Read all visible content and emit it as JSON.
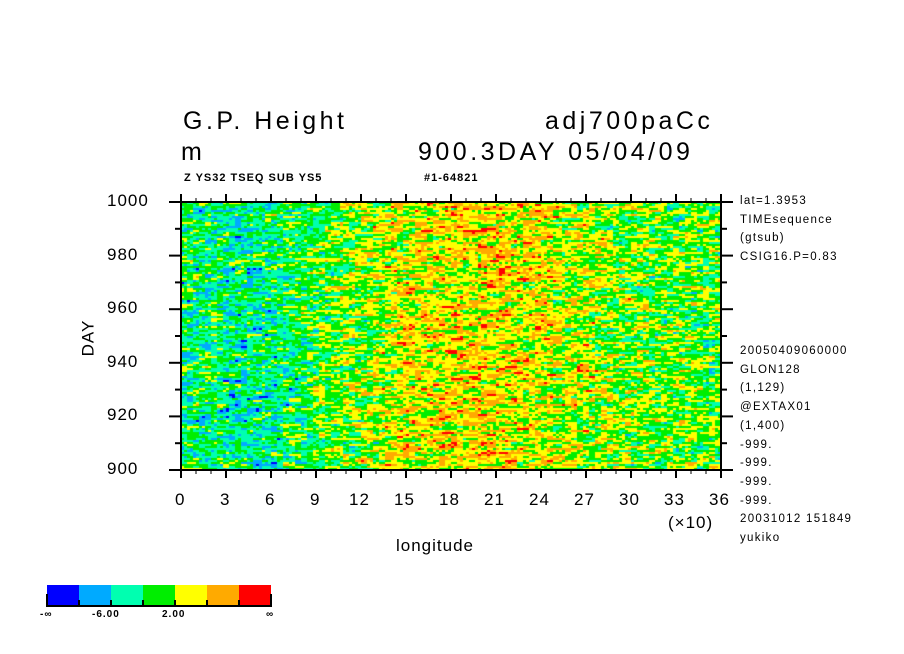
{
  "header": {
    "title": "G.P. Height",
    "dataset": "adj700paCc",
    "unit": "m",
    "time_label": "900.3DAY 05/04/09",
    "subtitle_left": "Z YS32 TSEQ SUB YS5",
    "subtitle_right": "#1-64821"
  },
  "info_lines": [
    "lat=1.3953",
    "TIMEsequence",
    "(gtsub)",
    "CSIG16.P=0.83"
  ],
  "info_lines2": [
    "20050409060000",
    "GLON128",
    "(1,129)",
    "@EXTAX01",
    "(1,400)",
    "-999.",
    "-999.",
    "-999.",
    "-999.",
    "20031012 151849",
    "yukiko"
  ],
  "chart_data": {
    "type": "heatmap",
    "title": "G.P. Height",
    "xlabel": "longitude",
    "xscale_label": "(×10)",
    "ylabel": "DAY",
    "xlim": [
      0,
      36
    ],
    "ylim": [
      900,
      1000
    ],
    "xticks": [
      "0",
      "3",
      "6",
      "9",
      "12",
      "15",
      "18",
      "21",
      "24",
      "27",
      "30",
      "33",
      "36"
    ],
    "yticks": [
      "900",
      "920",
      "940",
      "960",
      "980",
      "1000"
    ],
    "levels": [
      "-∞",
      "-6.00",
      "2.00",
      "∞"
    ],
    "colors": [
      "#0000ff",
      "#00aaff",
      "#00ffb0",
      "#00ee00",
      "#ffff00",
      "#ffaa00",
      "#ff0000"
    ]
  }
}
